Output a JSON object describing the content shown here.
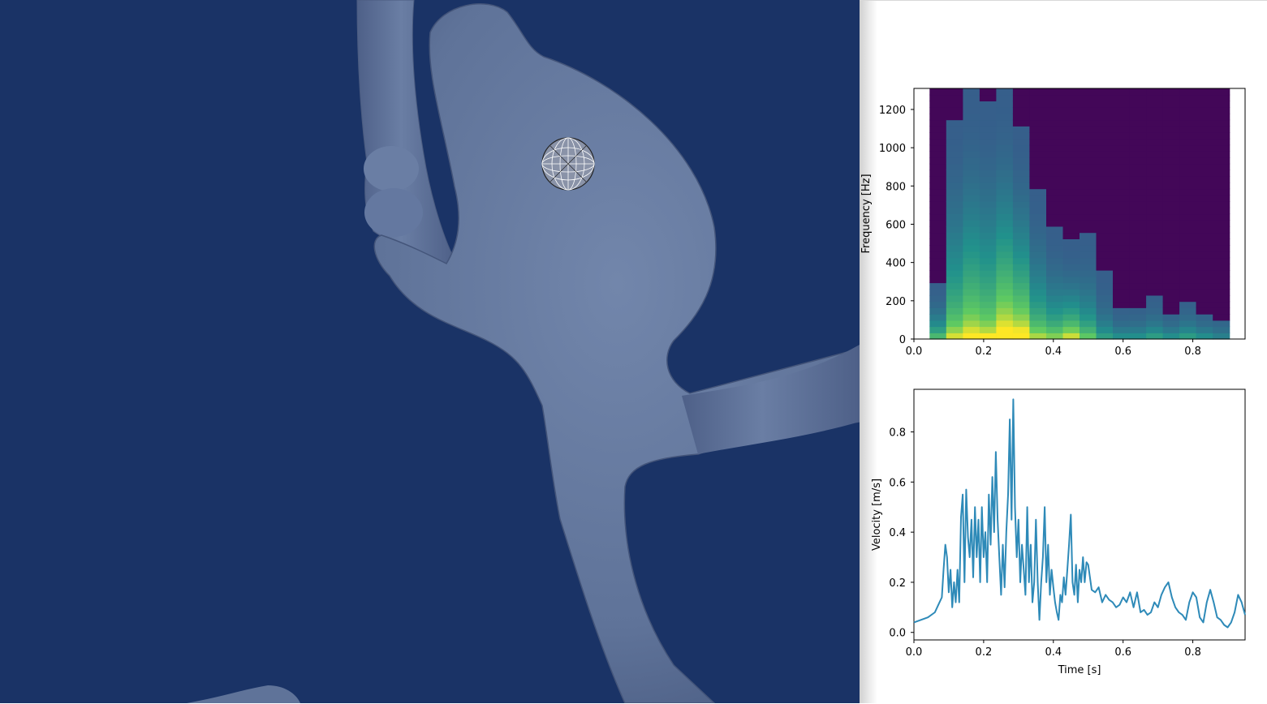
{
  "viewport": {
    "background": "#1a3366",
    "vessel_color": "#6478a0",
    "probe_icon": "wireframe-sphere-icon"
  },
  "chart_data": [
    {
      "type": "heatmap",
      "title": "",
      "xlabel": "",
      "ylabel": "Frequency [Hz]",
      "xlim": [
        0.0,
        0.95
      ],
      "ylim": [
        0,
        1310
      ],
      "x_ticks": [
        0.0,
        0.2,
        0.4,
        0.6,
        0.8
      ],
      "x_tick_labels": [
        "0.0",
        "0.2",
        "0.4",
        "0.6",
        "0.8"
      ],
      "y_ticks": [
        0,
        200,
        400,
        600,
        800,
        1000,
        1200
      ],
      "y_tick_labels": [
        "0",
        "200",
        "400",
        "600",
        "800",
        "1000",
        "1200"
      ],
      "data_xrange": [
        0.045,
        0.905
      ],
      "colormap": "viridis",
      "columns": [
        {
          "t": 0.05,
          "energy_top": 300,
          "peak": 0.55
        },
        {
          "t": 0.1,
          "energy_top": 1150,
          "peak": 0.75
        },
        {
          "t": 0.15,
          "energy_top": 1310,
          "peak": 0.85
        },
        {
          "t": 0.2,
          "energy_top": 1250,
          "peak": 0.8
        },
        {
          "t": 0.25,
          "energy_top": 1310,
          "peak": 0.95
        },
        {
          "t": 0.3,
          "energy_top": 1100,
          "peak": 0.9
        },
        {
          "t": 0.35,
          "energy_top": 800,
          "peak": 0.7
        },
        {
          "t": 0.4,
          "energy_top": 600,
          "peak": 0.65
        },
        {
          "t": 0.45,
          "energy_top": 520,
          "peak": 0.75
        },
        {
          "t": 0.5,
          "energy_top": 560,
          "peak": 0.6
        },
        {
          "t": 0.55,
          "energy_top": 350,
          "peak": 0.45
        },
        {
          "t": 0.6,
          "energy_top": 150,
          "peak": 0.4
        },
        {
          "t": 0.65,
          "energy_top": 170,
          "peak": 0.4
        },
        {
          "t": 0.7,
          "energy_top": 230,
          "peak": 0.45
        },
        {
          "t": 0.75,
          "energy_top": 140,
          "peak": 0.4
        },
        {
          "t": 0.8,
          "energy_top": 210,
          "peak": 0.45
        },
        {
          "t": 0.85,
          "energy_top": 140,
          "peak": 0.4
        },
        {
          "t": 0.9,
          "energy_top": 100,
          "peak": 0.35
        }
      ]
    },
    {
      "type": "line",
      "title": "",
      "xlabel": "Time [s]",
      "ylabel": "Velocity [m/s]",
      "xlim": [
        0.0,
        0.95
      ],
      "ylim": [
        -0.03,
        0.97
      ],
      "x_ticks": [
        0.0,
        0.2,
        0.4,
        0.6,
        0.8
      ],
      "x_tick_labels": [
        "0.0",
        "0.2",
        "0.4",
        "0.6",
        "0.8"
      ],
      "y_ticks": [
        0.0,
        0.2,
        0.4,
        0.6,
        0.8
      ],
      "y_tick_labels": [
        "0.0",
        "0.2",
        "0.4",
        "0.6",
        "0.8"
      ],
      "color": "#2e8ab8",
      "series": [
        {
          "x": [
            0.0,
            0.02,
            0.04,
            0.06,
            0.07,
            0.08,
            0.085,
            0.09,
            0.095,
            0.1,
            0.105,
            0.11,
            0.115,
            0.12,
            0.125,
            0.13,
            0.135,
            0.14,
            0.145,
            0.15,
            0.155,
            0.16,
            0.165,
            0.17,
            0.175,
            0.18,
            0.185,
            0.19,
            0.195,
            0.2,
            0.205,
            0.21,
            0.215,
            0.22,
            0.225,
            0.23,
            0.235,
            0.24,
            0.245,
            0.25,
            0.255,
            0.26,
            0.265,
            0.27,
            0.275,
            0.28,
            0.285,
            0.29,
            0.295,
            0.3,
            0.305,
            0.31,
            0.315,
            0.32,
            0.325,
            0.33,
            0.335,
            0.34,
            0.345,
            0.35,
            0.355,
            0.36,
            0.365,
            0.37,
            0.375,
            0.38,
            0.385,
            0.39,
            0.395,
            0.4,
            0.405,
            0.41,
            0.415,
            0.42,
            0.425,
            0.43,
            0.435,
            0.44,
            0.445,
            0.45,
            0.455,
            0.46,
            0.465,
            0.47,
            0.475,
            0.48,
            0.485,
            0.49,
            0.495,
            0.5,
            0.51,
            0.52,
            0.53,
            0.54,
            0.55,
            0.56,
            0.57,
            0.58,
            0.59,
            0.6,
            0.61,
            0.62,
            0.63,
            0.64,
            0.65,
            0.66,
            0.67,
            0.68,
            0.69,
            0.7,
            0.71,
            0.72,
            0.73,
            0.74,
            0.75,
            0.76,
            0.77,
            0.78,
            0.79,
            0.8,
            0.81,
            0.82,
            0.83,
            0.84,
            0.85,
            0.86,
            0.87,
            0.88,
            0.89,
            0.9,
            0.91,
            0.92,
            0.93,
            0.94,
            0.95
          ],
          "y": [
            0.04,
            0.05,
            0.06,
            0.08,
            0.11,
            0.14,
            0.25,
            0.35,
            0.3,
            0.16,
            0.25,
            0.1,
            0.2,
            0.12,
            0.25,
            0.12,
            0.46,
            0.55,
            0.2,
            0.57,
            0.38,
            0.3,
            0.45,
            0.22,
            0.5,
            0.3,
            0.45,
            0.2,
            0.5,
            0.3,
            0.4,
            0.2,
            0.55,
            0.35,
            0.62,
            0.4,
            0.72,
            0.45,
            0.3,
            0.15,
            0.35,
            0.18,
            0.4,
            0.55,
            0.85,
            0.45,
            0.93,
            0.5,
            0.3,
            0.45,
            0.2,
            0.35,
            0.25,
            0.15,
            0.5,
            0.2,
            0.35,
            0.12,
            0.2,
            0.45,
            0.2,
            0.05,
            0.2,
            0.3,
            0.5,
            0.2,
            0.35,
            0.15,
            0.25,
            0.18,
            0.12,
            0.08,
            0.05,
            0.15,
            0.12,
            0.22,
            0.15,
            0.25,
            0.35,
            0.47,
            0.2,
            0.15,
            0.27,
            0.12,
            0.25,
            0.2,
            0.3,
            0.2,
            0.28,
            0.27,
            0.17,
            0.16,
            0.18,
            0.12,
            0.15,
            0.13,
            0.12,
            0.1,
            0.11,
            0.14,
            0.12,
            0.16,
            0.1,
            0.16,
            0.08,
            0.09,
            0.07,
            0.08,
            0.12,
            0.1,
            0.15,
            0.18,
            0.2,
            0.14,
            0.1,
            0.08,
            0.07,
            0.05,
            0.12,
            0.16,
            0.14,
            0.06,
            0.04,
            0.12,
            0.17,
            0.12,
            0.06,
            0.05,
            0.03,
            0.02,
            0.04,
            0.08,
            0.15,
            0.12,
            0.07
          ]
        }
      ]
    }
  ]
}
